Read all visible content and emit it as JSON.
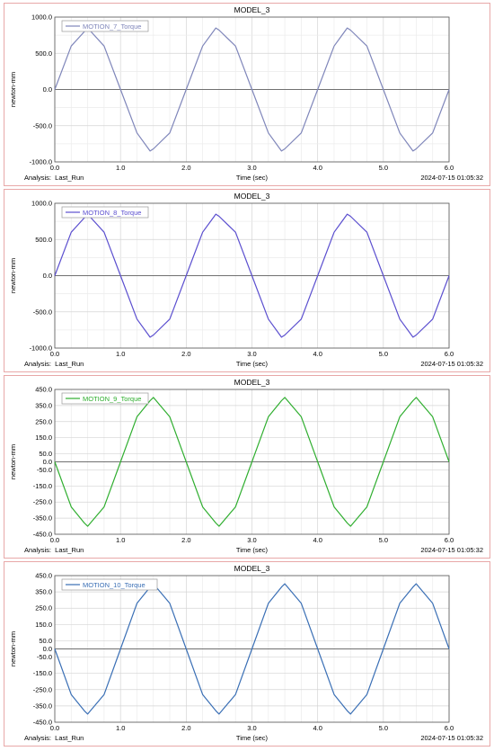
{
  "charts": [
    {
      "title": "MODEL_3",
      "xlabel": "Time (sec)",
      "ylabel": "newton-mm",
      "legend": "MOTION_7_Torque",
      "color": "#7f86ba",
      "analysis": "Analysis:  Last_Run",
      "timestamp": "2024-07-15 01:05:32",
      "x_ticks": [
        "0.0",
        "1.0",
        "2.0",
        "3.0",
        "4.0",
        "5.0",
        "6.0"
      ],
      "y_ticks": [
        "1000.0",
        "500.0",
        "0.0",
        "-500.0",
        "-1000.0"
      ]
    },
    {
      "title": "MODEL_3",
      "xlabel": "Time (sec)",
      "ylabel": "newton-mm",
      "legend": "MOTION_8_Torque",
      "color": "#5b4fcf",
      "analysis": "Analysis:  Last_Run",
      "timestamp": "2024-07-15 01:05:32",
      "x_ticks": [
        "0.0",
        "1.0",
        "2.0",
        "3.0",
        "4.0",
        "5.0",
        "6.0"
      ],
      "y_ticks": [
        "1000.0",
        "500.0",
        "0.0",
        "-500.0",
        "-1000.0"
      ]
    },
    {
      "title": "MODEL_3",
      "xlabel": "Time (sec)",
      "ylabel": "newton-mm",
      "legend": "MOTION_9_Torque",
      "color": "#2fae2f",
      "analysis": "Analysis:  Last_Run",
      "timestamp": "2024-07-15 01:05:32",
      "x_ticks": [
        "0.0",
        "1.0",
        "2.0",
        "3.0",
        "4.0",
        "5.0",
        "6.0"
      ],
      "y_ticks": [
        "450.0",
        "350.0",
        "250.0",
        "150.0",
        "50.0",
        "0.0",
        "-50.0",
        "-150.0",
        "-250.0",
        "-350.0",
        "-450.0"
      ]
    },
    {
      "title": "MODEL_3",
      "xlabel": "Time (sec)",
      "ylabel": "newton-mm",
      "legend": "MOTION_10_Torque",
      "color": "#3a6fb5",
      "analysis": "Analysis:  Last_Run",
      "timestamp": "2024-07-15 01:05:32",
      "x_ticks": [
        "0.0",
        "1.0",
        "2.0",
        "3.0",
        "4.0",
        "5.0",
        "6.0"
      ],
      "y_ticks": [
        "450.0",
        "350.0",
        "250.0",
        "150.0",
        "50.0",
        "0.0",
        "-50.0",
        "-150.0",
        "-250.0",
        "-350.0",
        "-450.0"
      ]
    }
  ],
  "chart_data": [
    {
      "type": "line",
      "title": "MODEL_3",
      "xlabel": "Time (sec)",
      "ylabel": "newton-mm",
      "xlim": [
        0,
        6
      ],
      "ylim": [
        -1000,
        1000
      ],
      "grid": true,
      "legend_position": "top-left",
      "series": [
        {
          "name": "MOTION_7_Torque",
          "x": [
            0,
            0.25,
            0.5,
            0.75,
            1.0,
            1.25,
            1.45,
            1.5,
            1.75,
            2.0,
            2.25,
            2.45,
            2.5,
            2.75,
            3.0,
            3.25,
            3.45,
            3.5,
            3.75,
            4.0,
            4.25,
            4.45,
            4.5,
            4.75,
            5.0,
            5.25,
            5.45,
            5.5,
            5.75,
            6.0
          ],
          "y": [
            0,
            600,
            850,
            600,
            0,
            -600,
            -850,
            -820,
            -600,
            0,
            600,
            850,
            820,
            600,
            0,
            -600,
            -850,
            -820,
            -600,
            0,
            600,
            850,
            820,
            600,
            0,
            -600,
            -850,
            -820,
            -600,
            0
          ]
        }
      ]
    },
    {
      "type": "line",
      "title": "MODEL_3",
      "xlabel": "Time (sec)",
      "ylabel": "newton-mm",
      "xlim": [
        0,
        6
      ],
      "ylim": [
        -1000,
        1000
      ],
      "grid": true,
      "legend_position": "top-left",
      "series": [
        {
          "name": "MOTION_8_Torque",
          "x": [
            0,
            0.25,
            0.5,
            0.75,
            1.0,
            1.25,
            1.45,
            1.5,
            1.75,
            2.0,
            2.25,
            2.45,
            2.5,
            2.75,
            3.0,
            3.25,
            3.45,
            3.5,
            3.75,
            4.0,
            4.25,
            4.45,
            4.5,
            4.75,
            5.0,
            5.25,
            5.45,
            5.5,
            5.75,
            6.0
          ],
          "y": [
            0,
            600,
            850,
            600,
            0,
            -600,
            -850,
            -820,
            -600,
            0,
            600,
            850,
            820,
            600,
            0,
            -600,
            -850,
            -820,
            -600,
            0,
            600,
            850,
            820,
            600,
            0,
            -600,
            -850,
            -820,
            -600,
            0
          ]
        }
      ]
    },
    {
      "type": "line",
      "title": "MODEL_3",
      "xlabel": "Time (sec)",
      "ylabel": "newton-mm",
      "xlim": [
        0,
        6
      ],
      "ylim": [
        -450,
        450
      ],
      "grid": true,
      "legend_position": "top-left",
      "series": [
        {
          "name": "MOTION_9_Torque",
          "x": [
            0,
            0.25,
            0.45,
            0.5,
            0.75,
            1.0,
            1.25,
            1.45,
            1.5,
            1.75,
            2.0,
            2.25,
            2.45,
            2.5,
            2.75,
            3.0,
            3.25,
            3.45,
            3.5,
            3.75,
            4.0,
            4.25,
            4.45,
            4.5,
            4.75,
            5.0,
            5.25,
            5.45,
            5.5,
            5.75,
            6.0
          ],
          "y": [
            0,
            -280,
            -380,
            -400,
            -280,
            0,
            280,
            380,
            400,
            280,
            0,
            -280,
            -380,
            -400,
            -280,
            0,
            280,
            380,
            400,
            280,
            0,
            -280,
            -380,
            -400,
            -280,
            0,
            280,
            380,
            400,
            280,
            0
          ]
        }
      ]
    },
    {
      "type": "line",
      "title": "MODEL_3",
      "xlabel": "Time (sec)",
      "ylabel": "newton-mm",
      "xlim": [
        0,
        6
      ],
      "ylim": [
        -450,
        450
      ],
      "grid": true,
      "legend_position": "top-left",
      "series": [
        {
          "name": "MOTION_10_Torque",
          "x": [
            0,
            0.25,
            0.45,
            0.5,
            0.75,
            1.0,
            1.25,
            1.45,
            1.5,
            1.75,
            2.0,
            2.25,
            2.45,
            2.5,
            2.75,
            3.0,
            3.25,
            3.45,
            3.5,
            3.75,
            4.0,
            4.25,
            4.45,
            4.5,
            4.75,
            5.0,
            5.25,
            5.45,
            5.5,
            5.75,
            6.0
          ],
          "y": [
            0,
            -280,
            -380,
            -400,
            -280,
            0,
            280,
            380,
            400,
            280,
            0,
            -280,
            -380,
            -400,
            -280,
            0,
            280,
            380,
            400,
            280,
            0,
            -280,
            -380,
            -400,
            -280,
            0,
            280,
            380,
            400,
            280,
            0
          ]
        }
      ]
    }
  ]
}
